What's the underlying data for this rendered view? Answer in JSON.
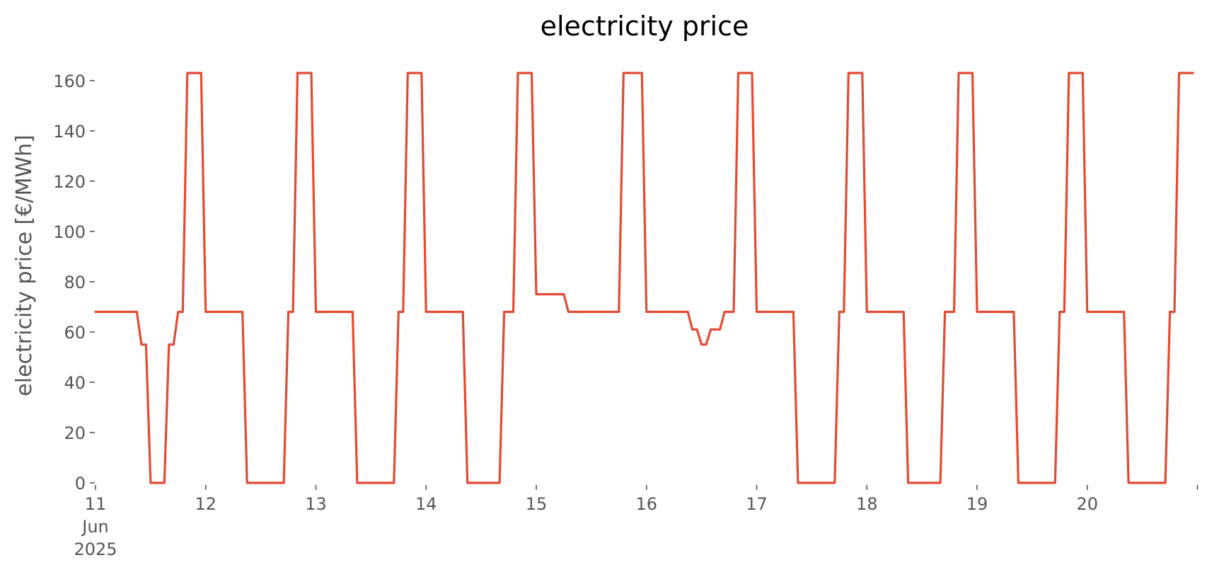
{
  "chart_data": {
    "type": "line",
    "title": "electricity price",
    "xlabel": "",
    "ylabel": "electricity price [€/MWh]",
    "ylim": [
      0,
      165
    ],
    "xlim": [
      "2025-06-11 00:00",
      "2025-06-20 23:00"
    ],
    "yticks": [
      0,
      20,
      40,
      60,
      80,
      100,
      120,
      140,
      160
    ],
    "xticks": [
      {
        "date": "2025-06-11",
        "label": [
          "11",
          "Jun",
          "2025"
        ]
      },
      {
        "date": "2025-06-12",
        "label": [
          "12"
        ]
      },
      {
        "date": "2025-06-13",
        "label": [
          "13"
        ]
      },
      {
        "date": "2025-06-14",
        "label": [
          "14"
        ]
      },
      {
        "date": "2025-06-15",
        "label": [
          "15"
        ]
      },
      {
        "date": "2025-06-16",
        "label": [
          "16"
        ]
      },
      {
        "date": "2025-06-17",
        "label": [
          "17"
        ]
      },
      {
        "date": "2025-06-18",
        "label": [
          "18"
        ]
      },
      {
        "date": "2025-06-19",
        "label": [
          "19"
        ]
      },
      {
        "date": "2025-06-20",
        "label": [
          "20"
        ]
      },
      {
        "date": "2025-06-21",
        "label": []
      }
    ],
    "grid": false,
    "series": [
      {
        "color": "#e24a33",
        "points": [
          [
            "2025-06-11 00:00",
            68
          ],
          [
            "2025-06-11 09:00",
            68
          ],
          [
            "2025-06-11 10:00",
            55
          ],
          [
            "2025-06-11 11:00",
            55
          ],
          [
            "2025-06-11 12:00",
            0
          ],
          [
            "2025-06-11 15:00",
            0
          ],
          [
            "2025-06-11 16:00",
            55
          ],
          [
            "2025-06-11 17:00",
            55
          ],
          [
            "2025-06-11 18:00",
            68
          ],
          [
            "2025-06-11 19:00",
            68
          ],
          [
            "2025-06-11 20:00",
            163
          ],
          [
            "2025-06-11 23:00",
            163
          ],
          [
            "2025-06-12 00:00",
            68
          ],
          [
            "2025-06-12 08:00",
            68
          ],
          [
            "2025-06-12 09:00",
            0
          ],
          [
            "2025-06-12 17:00",
            0
          ],
          [
            "2025-06-12 18:00",
            68
          ],
          [
            "2025-06-12 19:00",
            68
          ],
          [
            "2025-06-12 20:00",
            163
          ],
          [
            "2025-06-12 23:00",
            163
          ],
          [
            "2025-06-13 00:00",
            68
          ],
          [
            "2025-06-13 08:00",
            68
          ],
          [
            "2025-06-13 09:00",
            0
          ],
          [
            "2025-06-13 17:00",
            0
          ],
          [
            "2025-06-13 18:00",
            68
          ],
          [
            "2025-06-13 19:00",
            68
          ],
          [
            "2025-06-13 20:00",
            163
          ],
          [
            "2025-06-13 23:00",
            163
          ],
          [
            "2025-06-14 00:00",
            68
          ],
          [
            "2025-06-14 08:00",
            68
          ],
          [
            "2025-06-14 09:00",
            0
          ],
          [
            "2025-06-14 16:00",
            0
          ],
          [
            "2025-06-14 17:00",
            68
          ],
          [
            "2025-06-14 19:00",
            68
          ],
          [
            "2025-06-14 20:00",
            163
          ],
          [
            "2025-06-14 23:00",
            163
          ],
          [
            "2025-06-15 00:00",
            75
          ],
          [
            "2025-06-15 06:00",
            75
          ],
          [
            "2025-06-15 07:00",
            68
          ],
          [
            "2025-06-15 18:00",
            68
          ],
          [
            "2025-06-15 19:00",
            163
          ],
          [
            "2025-06-15 23:00",
            163
          ],
          [
            "2025-06-16 00:00",
            68
          ],
          [
            "2025-06-16 09:00",
            68
          ],
          [
            "2025-06-16 10:00",
            61
          ],
          [
            "2025-06-16 11:00",
            61
          ],
          [
            "2025-06-16 12:00",
            55
          ],
          [
            "2025-06-16 13:00",
            55
          ],
          [
            "2025-06-16 14:00",
            61
          ],
          [
            "2025-06-16 16:00",
            61
          ],
          [
            "2025-06-16 17:00",
            68
          ],
          [
            "2025-06-16 19:00",
            68
          ],
          [
            "2025-06-16 20:00",
            163
          ],
          [
            "2025-06-16 23:00",
            163
          ],
          [
            "2025-06-17 00:00",
            68
          ],
          [
            "2025-06-17 08:00",
            68
          ],
          [
            "2025-06-17 09:00",
            0
          ],
          [
            "2025-06-17 17:00",
            0
          ],
          [
            "2025-06-17 18:00",
            68
          ],
          [
            "2025-06-17 19:00",
            68
          ],
          [
            "2025-06-17 20:00",
            163
          ],
          [
            "2025-06-17 23:00",
            163
          ],
          [
            "2025-06-18 00:00",
            68
          ],
          [
            "2025-06-18 08:00",
            68
          ],
          [
            "2025-06-18 09:00",
            0
          ],
          [
            "2025-06-18 16:00",
            0
          ],
          [
            "2025-06-18 17:00",
            68
          ],
          [
            "2025-06-18 19:00",
            68
          ],
          [
            "2025-06-18 20:00",
            163
          ],
          [
            "2025-06-18 23:00",
            163
          ],
          [
            "2025-06-19 00:00",
            68
          ],
          [
            "2025-06-19 08:00",
            68
          ],
          [
            "2025-06-19 09:00",
            0
          ],
          [
            "2025-06-19 17:00",
            0
          ],
          [
            "2025-06-19 18:00",
            68
          ],
          [
            "2025-06-19 19:00",
            68
          ],
          [
            "2025-06-19 20:00",
            163
          ],
          [
            "2025-06-19 23:00",
            163
          ],
          [
            "2025-06-20 00:00",
            68
          ],
          [
            "2025-06-20 08:00",
            68
          ],
          [
            "2025-06-20 09:00",
            0
          ],
          [
            "2025-06-20 17:00",
            0
          ],
          [
            "2025-06-20 18:00",
            68
          ],
          [
            "2025-06-20 19:00",
            68
          ],
          [
            "2025-06-20 20:00",
            163
          ],
          [
            "2025-06-20 23:00",
            163
          ]
        ]
      }
    ]
  }
}
